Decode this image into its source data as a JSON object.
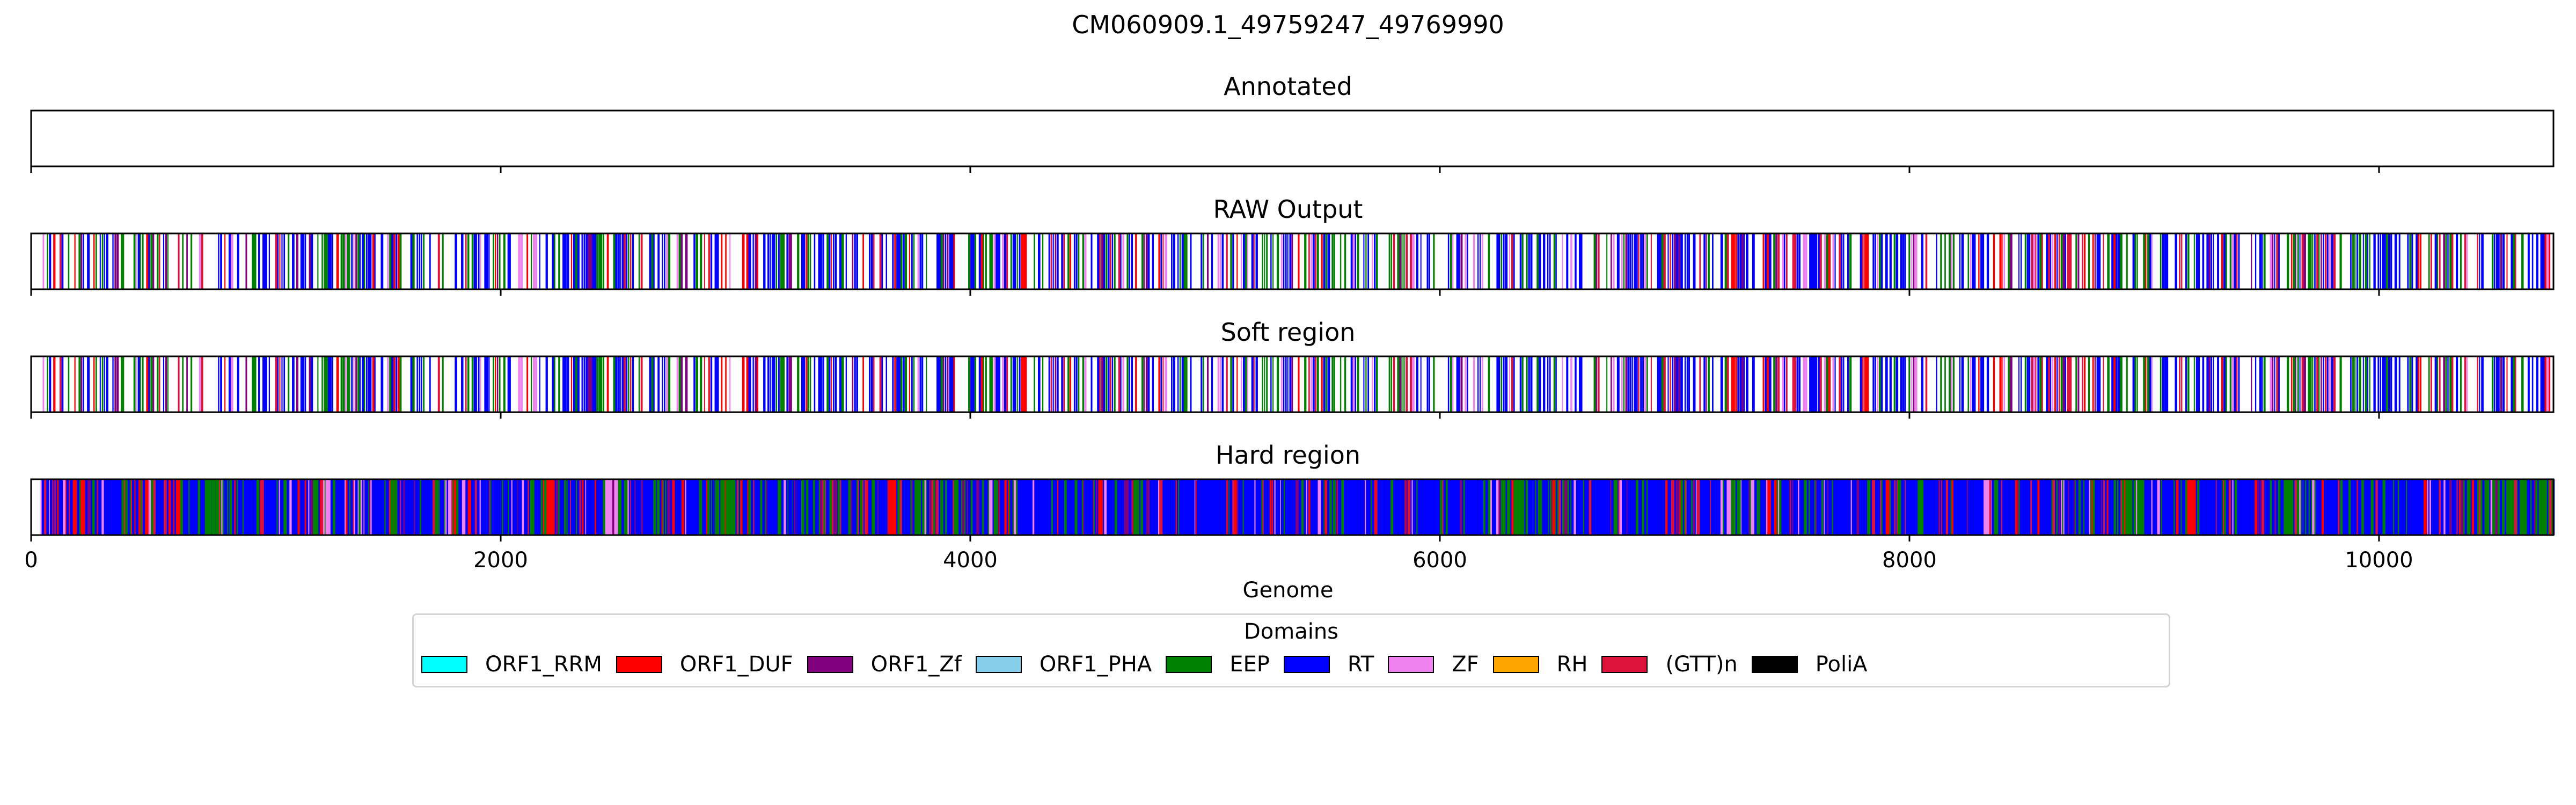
{
  "chart_data": {
    "type": "bar",
    "title": "CM060909.1_49759247_49769990",
    "xlabel": "Genome",
    "xlim": [
      0,
      10743
    ],
    "xticks": [
      0,
      2000,
      4000,
      6000,
      8000,
      10000
    ],
    "xtick_labels": [
      "0",
      "2000",
      "4000",
      "6000",
      "8000",
      "10000"
    ],
    "panels": [
      {
        "name": "Annotated",
        "tracks": []
      },
      {
        "name": "RAW Output",
        "style": "sparse"
      },
      {
        "name": "Soft region",
        "style": "sparse"
      },
      {
        "name": "Hard region",
        "style": "dense"
      }
    ],
    "legend": {
      "title": "Domains",
      "placement": "bottom-center",
      "entries": [
        {
          "label": "ORF1_RRM",
          "color": "#00ffff"
        },
        {
          "label": "ORF1_DUF",
          "color": "#ff0000"
        },
        {
          "label": "ORF1_Zf",
          "color": "#800080"
        },
        {
          "label": "ORF1_PHA",
          "color": "#87ceeb"
        },
        {
          "label": "EEP",
          "color": "#008000"
        },
        {
          "label": "RT",
          "color": "#0000ff"
        },
        {
          "label": "ZF",
          "color": "#ee82ee"
        },
        {
          "label": "RH",
          "color": "#ffa500"
        },
        {
          "label": "(GTT)n",
          "color": "#dc143c"
        },
        {
          "label": "PoliA",
          "color": "#000000"
        }
      ]
    },
    "domain_segments": [
      {
        "domain": "RT",
        "start": 40,
        "end": 10743
      },
      {
        "domain": "EEP",
        "start": 2880,
        "end": 3040
      },
      {
        "domain": "EEP",
        "start": 3180,
        "end": 3260
      },
      {
        "domain": "EEP",
        "start": 3760,
        "end": 4010
      },
      {
        "domain": "EEP",
        "start": 6260,
        "end": 6560
      },
      {
        "domain": "EEP",
        "start": 8870,
        "end": 9000
      },
      {
        "domain": "EEP",
        "start": 9570,
        "end": 9730
      },
      {
        "domain": "EEP",
        "start": 10300,
        "end": 10743
      },
      {
        "domain": "ORF1_DUF",
        "start": 140,
        "end": 230
      },
      {
        "domain": "ORF1_DUF",
        "start": 440,
        "end": 520
      },
      {
        "domain": "ORF1_DUF",
        "start": 590,
        "end": 640
      },
      {
        "domain": "ORF1_DUF",
        "start": 1520,
        "end": 1560
      },
      {
        "domain": "ORF1_DUF",
        "start": 2180,
        "end": 2230
      },
      {
        "domain": "ORF1_DUF",
        "start": 3650,
        "end": 3700
      },
      {
        "domain": "ORF1_DUF",
        "start": 4520,
        "end": 4560
      },
      {
        "domain": "ORF1_DUF",
        "start": 7380,
        "end": 7440
      },
      {
        "domain": "ORF1_DUF",
        "start": 7880,
        "end": 7920
      },
      {
        "domain": "ORF1_DUF",
        "start": 9180,
        "end": 9220
      },
      {
        "domain": "ZF",
        "start": 40,
        "end": 80
      },
      {
        "domain": "ZF",
        "start": 1240,
        "end": 1290
      },
      {
        "domain": "ZF",
        "start": 1390,
        "end": 1420
      },
      {
        "domain": "ZF",
        "start": 1740,
        "end": 1800
      },
      {
        "domain": "ZF",
        "start": 2440,
        "end": 2500
      },
      {
        "domain": "ZF",
        "start": 7210,
        "end": 7290
      },
      {
        "domain": "ZF",
        "start": 8310,
        "end": 8350
      },
      {
        "domain": "(GTT)n",
        "start": 3360,
        "end": 3390
      },
      {
        "domain": "(GTT)n",
        "start": 5110,
        "end": 5140
      }
    ]
  }
}
